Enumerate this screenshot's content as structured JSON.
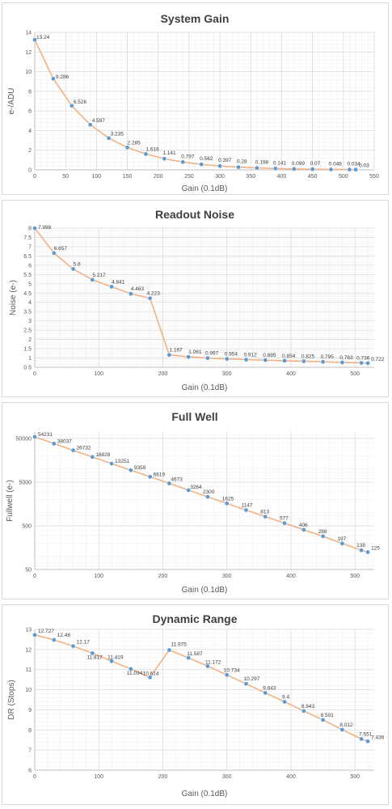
{
  "chart_data": [
    {
      "type": "line",
      "title": "System Gain",
      "xlabel": "Gain (0.1dB)",
      "ylabel": "e-/ADU",
      "xlim": [
        0,
        550
      ],
      "ylim": [
        0,
        14
      ],
      "yscale": "linear",
      "xticks": [
        0,
        50,
        100,
        150,
        200,
        250,
        300,
        350,
        400,
        450,
        500,
        550
      ],
      "yticks": [
        0,
        2,
        4,
        6,
        8,
        10,
        12,
        14
      ],
      "ytick_labels": [
        "0",
        "2",
        "4",
        "6",
        "8",
        "10",
        "12",
        "14"
      ],
      "grid": true,
      "x": [
        0,
        30,
        60,
        90,
        120,
        150,
        180,
        210,
        240,
        270,
        300,
        330,
        360,
        390,
        420,
        450,
        480,
        510,
        520
      ],
      "y": [
        13.24,
        9.286,
        6.526,
        4.597,
        3.235,
        2.285,
        1.616,
        1.141,
        0.797,
        0.562,
        0.397,
        0.28,
        0.198,
        0.141,
        0.099,
        0.07,
        0.048,
        0.034,
        0.03
      ],
      "labels": [
        "13.24",
        "9.286",
        "6.526",
        "4.597",
        "3.235",
        "2.285",
        "1.616",
        "1.141",
        "0.797",
        "0.562",
        "0.397",
        "0.28",
        "0.198",
        "0.141",
        "0.099",
        "0.07",
        "0.048",
        "0.034",
        "0.03"
      ],
      "line_color": "#f4b183",
      "marker_color": "#5b9bd5"
    },
    {
      "type": "line",
      "title": "Readout Noise",
      "xlabel": "Gain (0.1dB)",
      "ylabel": "Noise (e-)",
      "xlim": [
        0,
        530
      ],
      "ylim": [
        0.5,
        8
      ],
      "yscale": "linear",
      "xticks": [
        0,
        100,
        200,
        300,
        400,
        500
      ],
      "yticks": [
        0.5,
        1,
        1.5,
        2,
        2.5,
        3,
        3.5,
        4,
        4.5,
        5,
        5.5,
        6,
        6.5,
        7,
        7.5,
        8
      ],
      "ytick_labels": [
        "0.5",
        "1",
        "1.5",
        "2",
        "2.5",
        "3",
        "3.5",
        "4",
        "4.5",
        "5",
        "5.5",
        "6",
        "6.5",
        "7",
        "7.5",
        "8"
      ],
      "grid": true,
      "x": [
        0,
        30,
        60,
        90,
        120,
        150,
        180,
        210,
        240,
        270,
        300,
        330,
        360,
        390,
        420,
        450,
        480,
        510,
        520
      ],
      "y": [
        7.998,
        6.657,
        5.8,
        5.217,
        4.841,
        4.463,
        4.223,
        1.167,
        1.061,
        0.997,
        0.954,
        0.912,
        0.885,
        0.854,
        0.825,
        0.795,
        0.763,
        0.736,
        0.722
      ],
      "labels": [
        "7.998",
        "6.657",
        "5.8",
        "5.217",
        "4.841",
        "4.463",
        "4.223",
        "1.167",
        "1.061",
        "0.997",
        "0.954",
        "0.912",
        "0.885",
        "0.854",
        "0.825",
        "0.795",
        "0.763",
        "0.736",
        "0.722"
      ],
      "line_color": "#f4b183",
      "marker_color": "#5b9bd5"
    },
    {
      "type": "line",
      "title": "Full Well",
      "xlabel": "Gain (0.1dB)",
      "ylabel": "Fullwell (e-)",
      "xlim": [
        0,
        530
      ],
      "ylim": [
        50,
        70000
      ],
      "yscale": "log",
      "xticks": [
        0,
        100,
        200,
        300,
        400,
        500
      ],
      "yticks": [
        50,
        500,
        5000,
        50000
      ],
      "ytick_labels": [
        "50",
        "500",
        "5000",
        "50000"
      ],
      "grid": true,
      "x": [
        0,
        30,
        60,
        90,
        120,
        150,
        180,
        210,
        240,
        270,
        300,
        330,
        360,
        390,
        420,
        450,
        480,
        510,
        520
      ],
      "y": [
        54231,
        38037,
        26732,
        18828,
        13251,
        9359,
        6619,
        4673,
        3264,
        2300,
        1625,
        1147,
        813,
        577,
        406,
        288,
        197,
        138,
        125
      ],
      "labels": [
        "54231",
        "38037",
        "26732",
        "18828",
        "13251",
        "9359",
        "6619",
        "4673",
        "3264",
        "2300",
        "1625",
        "1147",
        "813",
        "577",
        "406",
        "288",
        "197",
        "138",
        "125"
      ],
      "line_color": "#f4b183",
      "marker_color": "#5b9bd5"
    },
    {
      "type": "line",
      "title": "Dynamic Range",
      "xlabel": "Gain (0.1dB)",
      "ylabel": "DR (Stops)",
      "xlim": [
        0,
        530
      ],
      "ylim": [
        6,
        13
      ],
      "yscale": "linear",
      "xticks": [
        0,
        100,
        200,
        300,
        400,
        500
      ],
      "yticks": [
        6,
        7,
        8,
        9,
        10,
        11,
        12,
        13
      ],
      "ytick_labels": [
        "6",
        "7",
        "8",
        "9",
        "10",
        "11",
        "12",
        "13"
      ],
      "grid": true,
      "x": [
        0,
        30,
        60,
        90,
        120,
        150,
        180,
        210,
        240,
        270,
        300,
        330,
        360,
        390,
        420,
        450,
        480,
        510,
        520
      ],
      "y": [
        12.727,
        12.48,
        12.17,
        11.817,
        11.419,
        11.034,
        10.614,
        11.975,
        11.587,
        11.172,
        10.734,
        10.297,
        9.843,
        9.4,
        8.943,
        8.501,
        8.012,
        7.551,
        7.436
      ],
      "labels": [
        "12.727",
        "12.48",
        "12.17",
        "11.817",
        "11.419",
        "11.034",
        "10.614",
        "11.975",
        "11.587",
        "11.172",
        "10.734",
        "10.297",
        "9.843",
        "9.4",
        "8.943",
        "8.501",
        "8.012",
        "7.551",
        "7.436"
      ],
      "line_color": "#f4b183",
      "marker_color": "#5b9bd5"
    }
  ]
}
